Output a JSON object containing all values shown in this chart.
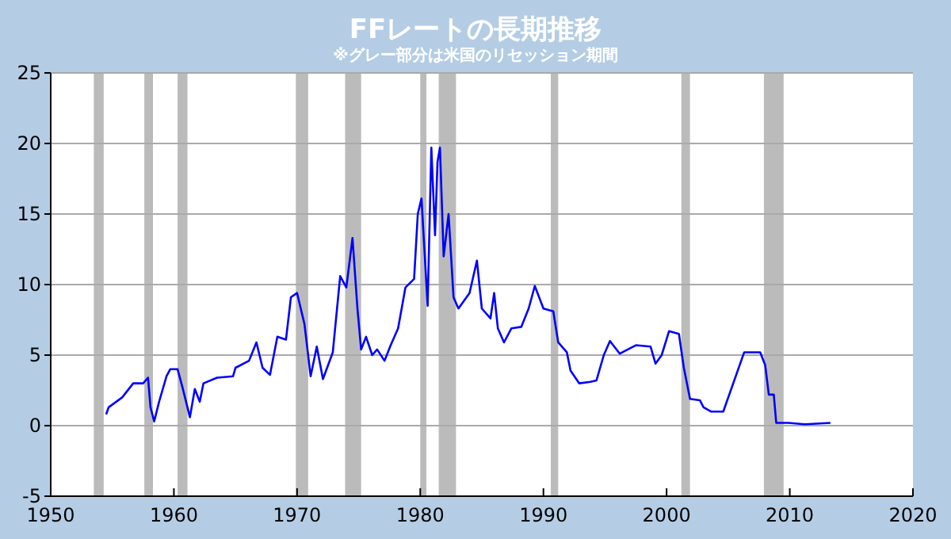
{
  "chart_data": {
    "type": "line",
    "title": "FFレートの長期推移",
    "subtitle": "※グレー部分は米国のリセッション期間",
    "xlim": [
      1950,
      2020
    ],
    "xticks": [
      1950,
      1960,
      1970,
      1980,
      1990,
      2000,
      2010,
      2020
    ],
    "ylim": [
      -5,
      25
    ],
    "yticks": [
      -5,
      0,
      5,
      10,
      15,
      20,
      25
    ],
    "grid": "y",
    "marker": "none",
    "line_style": "solid",
    "bands": [
      {
        "axis": "x",
        "from": 1953.5,
        "to": 1954.3,
        "color": "#bbbbbb"
      },
      {
        "axis": "x",
        "from": 1957.6,
        "to": 1958.3,
        "color": "#bbbbbb"
      },
      {
        "axis": "x",
        "from": 1960.3,
        "to": 1961.1,
        "color": "#bbbbbb"
      },
      {
        "axis": "x",
        "from": 1969.9,
        "to": 1970.9,
        "color": "#bbbbbb"
      },
      {
        "axis": "x",
        "from": 1973.9,
        "to": 1975.2,
        "color": "#bbbbbb"
      },
      {
        "axis": "x",
        "from": 1980.0,
        "to": 1980.5,
        "color": "#bbbbbb"
      },
      {
        "axis": "x",
        "from": 1981.5,
        "to": 1982.9,
        "color": "#bbbbbb"
      },
      {
        "axis": "x",
        "from": 1990.6,
        "to": 1991.2,
        "color": "#bbbbbb"
      },
      {
        "axis": "x",
        "from": 2001.2,
        "to": 2001.9,
        "color": "#bbbbbb"
      },
      {
        "axis": "x",
        "from": 2007.9,
        "to": 2009.5,
        "color": "#bbbbbb"
      }
    ],
    "series": [
      {
        "color": "#0000ff",
        "x": [
          1954.5,
          1954.7,
          1955.8,
          1956.7,
          1957.5,
          1957.9,
          1958.1,
          1958.4,
          1958.8,
          1959.4,
          1959.7,
          1960.3,
          1960.7,
          1961.3,
          1961.7,
          1962.1,
          1962.4,
          1963.5,
          1964.8,
          1965.0,
          1966.1,
          1966.7,
          1967.2,
          1967.8,
          1968.4,
          1969.1,
          1969.5,
          1970.0,
          1970.6,
          1971.1,
          1971.6,
          1972.1,
          1972.9,
          1973.5,
          1974.0,
          1974.5,
          1974.9,
          1975.2,
          1975.6,
          1976.1,
          1976.5,
          1977.1,
          1977.6,
          1978.2,
          1978.8,
          1979.5,
          1979.8,
          1980.1,
          1980.6,
          1980.9,
          1981.2,
          1981.4,
          1981.6,
          1981.9,
          1982.3,
          1982.7,
          1983.1,
          1984.0,
          1984.6,
          1985.0,
          1985.7,
          1986.0,
          1986.3,
          1986.8,
          1987.4,
          1988.2,
          1988.8,
          1989.3,
          1990.0,
          1990.8,
          1991.2,
          1991.9,
          1992.2,
          1992.9,
          1993.8,
          1994.3,
          1994.9,
          1995.4,
          1996.2,
          1997.5,
          1998.7,
          1999.1,
          1999.6,
          2000.2,
          2001.0,
          2001.4,
          2001.9,
          2002.7,
          2003.0,
          2003.6,
          2004.6,
          2006.3,
          2007.6,
          2008.0,
          2008.3,
          2008.7,
          2008.9,
          2009.9,
          2011.2,
          2013.3
        ],
        "values": [
          0.8,
          1.3,
          2.0,
          3.0,
          3.0,
          3.4,
          1.3,
          0.3,
          1.7,
          3.5,
          4.0,
          4.0,
          2.7,
          0.6,
          2.6,
          1.7,
          3.0,
          3.4,
          3.5,
          4.1,
          4.6,
          5.9,
          4.1,
          3.6,
          6.3,
          6.1,
          9.1,
          9.4,
          7.2,
          3.5,
          5.6,
          3.3,
          5.2,
          10.6,
          9.8,
          13.3,
          8.3,
          5.4,
          6.3,
          5.0,
          5.4,
          4.6,
          5.7,
          6.9,
          9.8,
          10.4,
          15.0,
          16.1,
          8.5,
          19.7,
          13.5,
          18.7,
          19.7,
          12.0,
          15.0,
          9.1,
          8.3,
          9.4,
          11.7,
          8.3,
          7.6,
          9.4,
          6.9,
          5.9,
          6.9,
          7.0,
          8.3,
          9.9,
          8.3,
          8.1,
          5.9,
          5.2,
          3.9,
          3.0,
          3.1,
          3.2,
          5.0,
          6.0,
          5.1,
          5.7,
          5.6,
          4.4,
          5.0,
          6.7,
          6.5,
          4.1,
          1.9,
          1.8,
          1.3,
          1.0,
          1.0,
          5.2,
          5.2,
          4.3,
          2.2,
          2.2,
          0.2,
          0.2,
          0.1,
          0.2
        ]
      }
    ]
  }
}
